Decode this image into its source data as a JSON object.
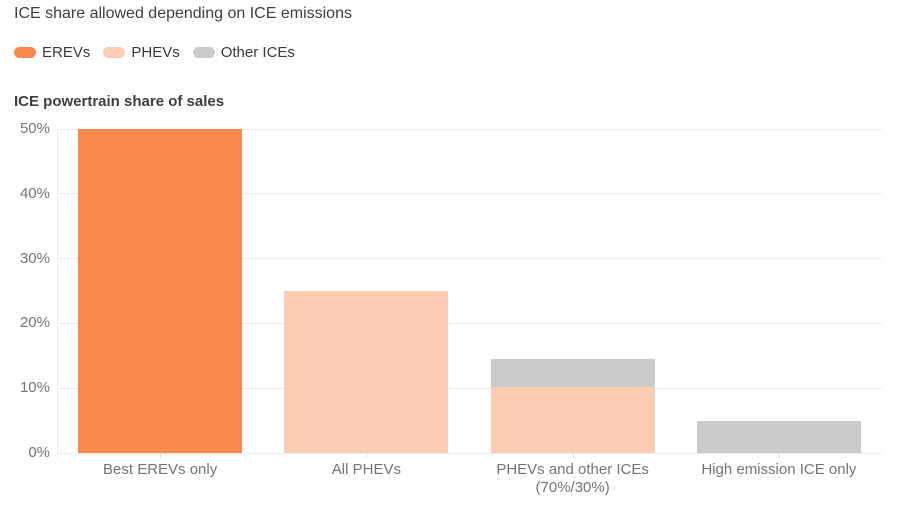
{
  "header": {
    "title": "ICE share allowed depending on ICE emissions"
  },
  "legend": {
    "items": [
      {
        "label": "EREVs",
        "color": "#f98a4d"
      },
      {
        "label": "PHEVs",
        "color": "#fdccb5"
      },
      {
        "label": "Other ICEs",
        "color": "#cbcbcb"
      }
    ]
  },
  "axis": {
    "y_title": "ICE powertrain share of sales"
  },
  "chart_data": {
    "type": "bar",
    "stacked": true,
    "title": "ICE share allowed depending on ICE emissions",
    "ylabel": "ICE powertrain share of sales",
    "xlabel": "",
    "ylim": [
      0,
      50
    ],
    "ytick_labels": [
      "0%",
      "10%",
      "20%",
      "30%",
      "40%",
      "50%"
    ],
    "ytick_values": [
      0,
      10,
      20,
      30,
      40,
      50
    ],
    "grid": true,
    "legend_position": "top",
    "categories": [
      "Best EREVs only",
      "All PHEVs",
      "PHEVs and other ICEs\n(70%/30%)",
      "High emission ICE only"
    ],
    "series": [
      {
        "name": "EREVs",
        "color": "#f98a4d",
        "values": [
          50,
          0,
          0,
          0
        ]
      },
      {
        "name": "PHEVs",
        "color": "#fdccb5",
        "values": [
          0,
          25,
          10.15,
          0
        ]
      },
      {
        "name": "Other ICEs",
        "color": "#cbcbcb",
        "values": [
          0,
          0,
          4.35,
          5
        ]
      }
    ]
  }
}
